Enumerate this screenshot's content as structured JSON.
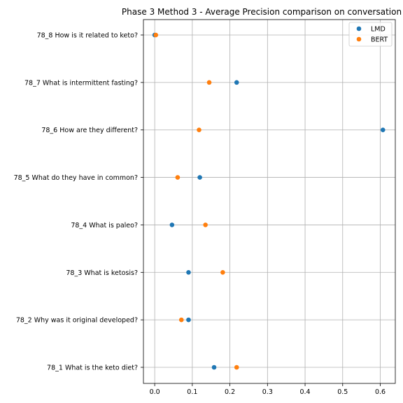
{
  "chart_data": {
    "type": "scatter",
    "title": "Phase 3 Method 3 - Average Precision comparison on conversation",
    "xlabel": "",
    "ylabel": "",
    "xlim": [
      -0.03,
      0.64
    ],
    "x_ticks": [
      0.0,
      0.1,
      0.2,
      0.3,
      0.4,
      0.5,
      0.6
    ],
    "x_tick_labels": [
      "0.0",
      "0.1",
      "0.2",
      "0.3",
      "0.4",
      "0.5",
      "0.6"
    ],
    "categories": [
      "78_1 What is the keto diet?",
      "78_2 Why was it original developed?",
      "78_3 What is ketosis?",
      "78_4 What is paleo?",
      "78_5 What do they have in common?",
      "78_6 How are they different?",
      "78_7 What is intermittent fasting?",
      "78_8 How is it related to keto?"
    ],
    "grid": true,
    "legend_position": "top-right",
    "series": [
      {
        "name": "LMD",
        "color": "#1f77b4",
        "values": [
          0.158,
          0.09,
          0.09,
          0.046,
          0.12,
          0.607,
          0.218,
          0.0
        ]
      },
      {
        "name": "BERT",
        "color": "#ff7f0e",
        "values": [
          0.218,
          0.071,
          0.181,
          0.135,
          0.061,
          0.118,
          0.145,
          0.003
        ]
      }
    ]
  }
}
